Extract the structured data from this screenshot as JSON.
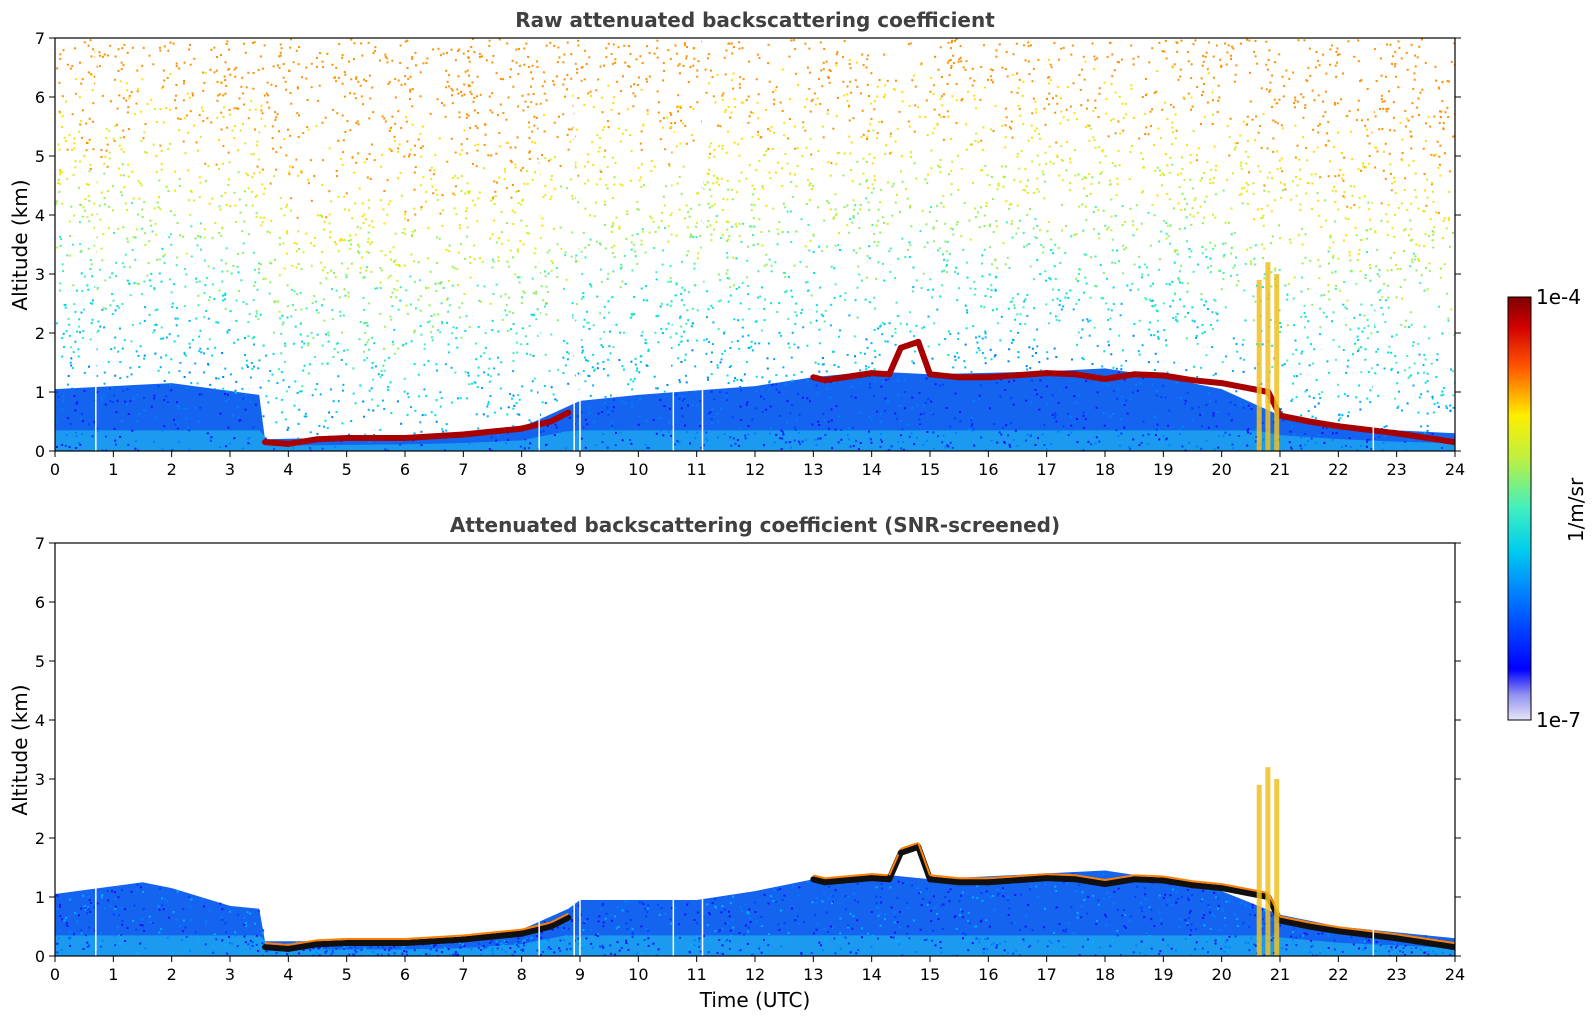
{
  "chart_data": [
    {
      "type": "heatmap",
      "title": "Raw attenuated backscattering coefficient",
      "xlabel": "",
      "ylabel": "Altitude (km)",
      "xlim": [
        0,
        24
      ],
      "ylim": [
        0,
        7
      ],
      "x_ticks": [
        "0",
        "1",
        "2",
        "3",
        "4",
        "5",
        "6",
        "7",
        "8",
        "9",
        "10",
        "11",
        "12",
        "13",
        "14",
        "15",
        "16",
        "17",
        "18",
        "19",
        "20",
        "21",
        "22",
        "23",
        "24"
      ],
      "y_ticks": [
        "0",
        "1",
        "2",
        "3",
        "4",
        "5",
        "6",
        "7"
      ],
      "boundary_layer_top_km": [
        [
          0.0,
          1.05
        ],
        [
          2.0,
          1.15
        ],
        [
          3.5,
          0.95
        ],
        [
          3.6,
          0.2
        ],
        [
          6.0,
          0.25
        ],
        [
          7.0,
          0.3
        ],
        [
          8.0,
          0.4
        ],
        [
          9.0,
          0.85
        ],
        [
          10.0,
          0.95
        ],
        [
          12.0,
          1.1
        ],
        [
          13.0,
          1.25
        ],
        [
          14.0,
          1.35
        ],
        [
          15.0,
          1.3
        ],
        [
          17.0,
          1.35
        ],
        [
          18.0,
          1.4
        ],
        [
          19.0,
          1.25
        ],
        [
          20.0,
          1.05
        ],
        [
          21.0,
          0.6
        ],
        [
          22.0,
          0.45
        ],
        [
          23.0,
          0.35
        ],
        [
          24.0,
          0.3
        ]
      ],
      "cloud_layer_km": [
        [
          3.6,
          0.15
        ],
        [
          4.0,
          0.12
        ],
        [
          4.5,
          0.2
        ],
        [
          5.0,
          0.22
        ],
        [
          6.0,
          0.22
        ],
        [
          7.0,
          0.28
        ],
        [
          7.5,
          0.33
        ],
        [
          8.0,
          0.38
        ],
        [
          8.5,
          0.5
        ],
        [
          8.8,
          0.65
        ],
        [
          13.0,
          1.25
        ],
        [
          13.2,
          1.2
        ],
        [
          14.0,
          1.32
        ],
        [
          14.3,
          1.3
        ],
        [
          14.5,
          1.75
        ],
        [
          14.8,
          1.85
        ],
        [
          15.0,
          1.3
        ],
        [
          15.5,
          1.25
        ],
        [
          16.0,
          1.25
        ],
        [
          17.0,
          1.32
        ],
        [
          17.5,
          1.3
        ],
        [
          18.0,
          1.22
        ],
        [
          18.5,
          1.3
        ],
        [
          19.0,
          1.28
        ],
        [
          19.5,
          1.2
        ],
        [
          20.0,
          1.15
        ],
        [
          20.8,
          1.0
        ],
        [
          21.0,
          0.6
        ],
        [
          21.5,
          0.5
        ],
        [
          22.0,
          0.42
        ],
        [
          23.0,
          0.3
        ],
        [
          24.0,
          0.15
        ]
      ],
      "missing_profiles_utc": [
        0.7,
        8.3,
        8.9,
        9.0,
        10.6,
        11.1,
        22.6
      ],
      "colorbar": {
        "label": "1/m/sr",
        "min_label": "1e-7",
        "max_label": "1e-4",
        "scale": "log",
        "colormap": "jet"
      }
    },
    {
      "type": "heatmap",
      "title": "Attenuated backscattering coefficient (SNR-screened)",
      "xlabel": "Time (UTC)",
      "ylabel": "Altitude (km)",
      "xlim": [
        0,
        24
      ],
      "ylim": [
        0,
        7
      ],
      "x_ticks": [
        "0",
        "1",
        "2",
        "3",
        "4",
        "5",
        "6",
        "7",
        "8",
        "9",
        "10",
        "11",
        "12",
        "13",
        "14",
        "15",
        "16",
        "17",
        "18",
        "19",
        "20",
        "21",
        "22",
        "23",
        "24"
      ],
      "y_ticks": [
        "0",
        "1",
        "2",
        "3",
        "4",
        "5",
        "6",
        "7"
      ],
      "boundary_layer_top_km": [
        [
          0.0,
          1.05
        ],
        [
          1.5,
          1.25
        ],
        [
          2.0,
          1.15
        ],
        [
          3.0,
          0.85
        ],
        [
          3.5,
          0.8
        ],
        [
          3.6,
          0.25
        ],
        [
          6.0,
          0.25
        ],
        [
          7.0,
          0.3
        ],
        [
          8.0,
          0.45
        ],
        [
          8.8,
          0.8
        ],
        [
          9.0,
          0.95
        ],
        [
          11.0,
          0.95
        ],
        [
          12.0,
          1.1
        ],
        [
          13.0,
          1.3
        ],
        [
          14.0,
          1.4
        ],
        [
          15.0,
          1.3
        ],
        [
          17.0,
          1.4
        ],
        [
          18.0,
          1.45
        ],
        [
          19.0,
          1.3
        ],
        [
          20.0,
          1.1
        ],
        [
          21.0,
          0.7
        ],
        [
          22.0,
          0.5
        ],
        [
          23.0,
          0.4
        ],
        [
          24.0,
          0.3
        ]
      ],
      "cloud_layer_km": [
        [
          3.6,
          0.15
        ],
        [
          4.0,
          0.12
        ],
        [
          4.5,
          0.2
        ],
        [
          5.0,
          0.22
        ],
        [
          6.0,
          0.22
        ],
        [
          7.0,
          0.28
        ],
        [
          7.5,
          0.33
        ],
        [
          8.0,
          0.38
        ],
        [
          8.5,
          0.5
        ],
        [
          8.8,
          0.65
        ],
        [
          13.0,
          1.3
        ],
        [
          13.2,
          1.25
        ],
        [
          14.0,
          1.32
        ],
        [
          14.3,
          1.3
        ],
        [
          14.5,
          1.75
        ],
        [
          14.8,
          1.85
        ],
        [
          15.0,
          1.3
        ],
        [
          15.5,
          1.25
        ],
        [
          16.0,
          1.25
        ],
        [
          17.0,
          1.32
        ],
        [
          17.5,
          1.3
        ],
        [
          18.0,
          1.22
        ],
        [
          18.5,
          1.3
        ],
        [
          19.0,
          1.28
        ],
        [
          19.5,
          1.2
        ],
        [
          20.0,
          1.15
        ],
        [
          20.8,
          1.0
        ],
        [
          21.0,
          0.6
        ],
        [
          21.5,
          0.5
        ],
        [
          22.0,
          0.42
        ],
        [
          23.0,
          0.3
        ],
        [
          24.0,
          0.15
        ]
      ],
      "missing_profiles_utc": [
        0.7,
        8.3,
        8.9,
        9.0,
        10.6,
        11.1,
        22.6
      ],
      "colorbar": {
        "label": "1/m/sr",
        "min_label": "1e-7",
        "max_label": "1e-4",
        "scale": "log",
        "colormap": "jet"
      }
    }
  ]
}
